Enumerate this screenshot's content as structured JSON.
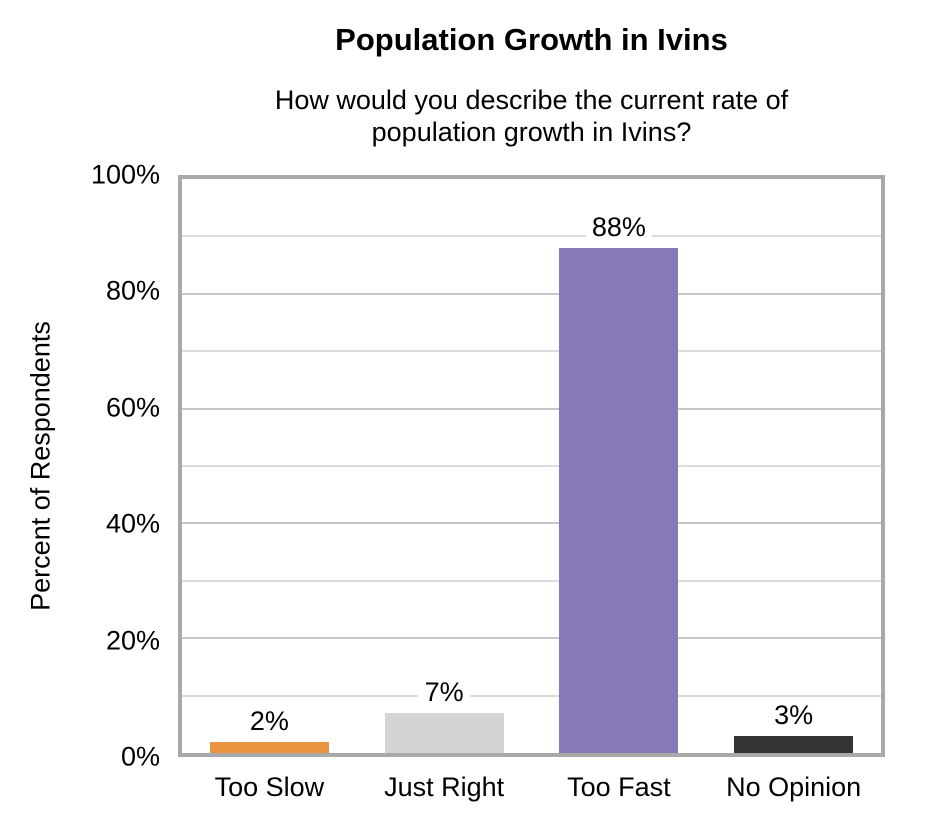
{
  "chart_data": {
    "type": "bar",
    "title": "Population Growth in Ivins",
    "subtitle_lines": [
      "How would you describe the current rate of",
      "population growth in Ivins?"
    ],
    "ylabel": "Percent of Respondents",
    "xlabel": "",
    "categories": [
      "Too Slow",
      "Just Right",
      "Too Fast",
      "No Opinion"
    ],
    "values": [
      2,
      7,
      88,
      3
    ],
    "data_labels": [
      "2%",
      "7%",
      "88%",
      "3%"
    ],
    "bar_colors": [
      "#EA9440",
      "#D4D4D4",
      "#8779B5",
      "#333333"
    ],
    "ylim": [
      0,
      100
    ],
    "ytick_step": 20,
    "ytick_labels": [
      "0%",
      "20%",
      "40%",
      "60%",
      "80%",
      "100%"
    ],
    "grid_step_minor": 10,
    "grid_on": true,
    "legend": "none",
    "colors": {
      "plot_border": "#A9A9A9",
      "grid_major": "#C6C6C6",
      "grid_minor": "#DCDCDC",
      "text": "#000000",
      "background": "#FFFFFF"
    }
  }
}
